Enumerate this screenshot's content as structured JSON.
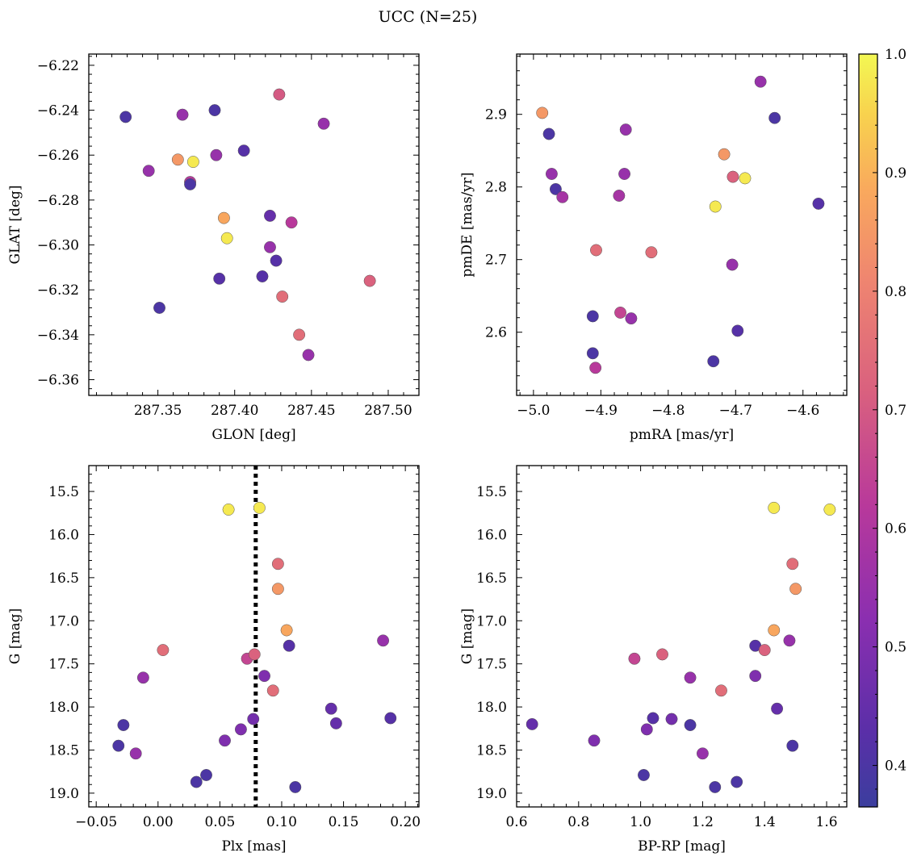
{
  "figure": {
    "title": "UCC (N=25)"
  },
  "colorbar": {
    "range": [
      0.365,
      1.0
    ],
    "ticks": [
      0.4,
      0.5,
      0.6,
      0.7,
      0.8,
      0.9,
      1.0
    ],
    "tick_labels": [
      "0.4",
      "0.5",
      "0.6",
      "0.7",
      "0.8",
      "0.9",
      "1.0"
    ],
    "colormap": "plasma"
  },
  "chart_data": [
    {
      "type": "scatter",
      "xlabel": "GLON [deg]",
      "ylabel": "GLAT [deg]",
      "xlim": [
        287.305,
        287.52
      ],
      "ylim": [
        -6.367,
        -6.215
      ],
      "y_inverted": false,
      "xticks": [
        287.35,
        287.4,
        287.45,
        287.5
      ],
      "xtick_labels": [
        "287.35",
        "287.40",
        "287.45",
        "287.50"
      ],
      "yticks": [
        -6.36,
        -6.34,
        -6.32,
        -6.3,
        -6.28,
        -6.26,
        -6.24,
        -6.22
      ],
      "ytick_labels": [
        "−6.36",
        "−6.34",
        "−6.32",
        "−6.30",
        "−6.28",
        "−6.26",
        "−6.24",
        "−6.22"
      ],
      "points": [
        {
          "x": 287.329,
          "y": -6.243,
          "c": 0.4
        },
        {
          "x": 287.366,
          "y": -6.242,
          "c": 0.55
        },
        {
          "x": 287.387,
          "y": -6.24,
          "c": 0.4
        },
        {
          "x": 287.429,
          "y": -6.233,
          "c": 0.7
        },
        {
          "x": 287.458,
          "y": -6.246,
          "c": 0.55
        },
        {
          "x": 287.406,
          "y": -6.258,
          "c": 0.42
        },
        {
          "x": 287.388,
          "y": -6.26,
          "c": 0.55
        },
        {
          "x": 287.363,
          "y": -6.262,
          "c": 0.85
        },
        {
          "x": 287.373,
          "y": -6.263,
          "c": 0.98
        },
        {
          "x": 287.344,
          "y": -6.267,
          "c": 0.55
        },
        {
          "x": 287.371,
          "y": -6.272,
          "c": 0.62
        },
        {
          "x": 287.371,
          "y": -6.273,
          "c": 0.4
        },
        {
          "x": 287.393,
          "y": -6.288,
          "c": 0.88
        },
        {
          "x": 287.423,
          "y": -6.287,
          "c": 0.45
        },
        {
          "x": 287.437,
          "y": -6.29,
          "c": 0.62
        },
        {
          "x": 287.395,
          "y": -6.297,
          "c": 0.98
        },
        {
          "x": 287.423,
          "y": -6.301,
          "c": 0.55
        },
        {
          "x": 287.427,
          "y": -6.307,
          "c": 0.42
        },
        {
          "x": 287.39,
          "y": -6.315,
          "c": 0.42
        },
        {
          "x": 287.418,
          "y": -6.314,
          "c": 0.42
        },
        {
          "x": 287.488,
          "y": -6.316,
          "c": 0.72
        },
        {
          "x": 287.431,
          "y": -6.323,
          "c": 0.75
        },
        {
          "x": 287.351,
          "y": -6.328,
          "c": 0.4
        },
        {
          "x": 287.442,
          "y": -6.34,
          "c": 0.75
        },
        {
          "x": 287.448,
          "y": -6.349,
          "c": 0.55
        }
      ]
    },
    {
      "type": "scatter",
      "xlabel": "pmRA [mas/yr]",
      "ylabel": "pmDE [mas/yr]",
      "xlim": [
        -5.025,
        -4.535
      ],
      "ylim": [
        2.513,
        2.983
      ],
      "y_inverted": false,
      "xticks": [
        -5.0,
        -4.9,
        -4.8,
        -4.7,
        -4.6
      ],
      "xtick_labels": [
        "−5.0",
        "−4.9",
        "−4.8",
        "−4.7",
        "−4.6"
      ],
      "yticks": [
        2.6,
        2.7,
        2.8,
        2.9
      ],
      "ytick_labels": [
        "2.6",
        "2.7",
        "2.8",
        "2.9"
      ],
      "points": [
        {
          "x": -4.987,
          "y": 2.902,
          "c": 0.85
        },
        {
          "x": -4.977,
          "y": 2.873,
          "c": 0.4
        },
        {
          "x": -4.973,
          "y": 2.818,
          "c": 0.55
        },
        {
          "x": -4.967,
          "y": 2.797,
          "c": 0.4
        },
        {
          "x": -4.957,
          "y": 2.786,
          "c": 0.58
        },
        {
          "x": -4.863,
          "y": 2.879,
          "c": 0.55
        },
        {
          "x": -4.865,
          "y": 2.818,
          "c": 0.55
        },
        {
          "x": -4.873,
          "y": 2.788,
          "c": 0.58
        },
        {
          "x": -4.663,
          "y": 2.945,
          "c": 0.55
        },
        {
          "x": -4.642,
          "y": 2.895,
          "c": 0.4
        },
        {
          "x": -4.717,
          "y": 2.845,
          "c": 0.85
        },
        {
          "x": -4.704,
          "y": 2.814,
          "c": 0.72
        },
        {
          "x": -4.686,
          "y": 2.812,
          "c": 0.98
        },
        {
          "x": -4.73,
          "y": 2.773,
          "c": 0.98
        },
        {
          "x": -4.577,
          "y": 2.777,
          "c": 0.42
        },
        {
          "x": -4.907,
          "y": 2.713,
          "c": 0.75
        },
        {
          "x": -4.825,
          "y": 2.71,
          "c": 0.75
        },
        {
          "x": -4.705,
          "y": 2.693,
          "c": 0.55
        },
        {
          "x": -4.871,
          "y": 2.627,
          "c": 0.65
        },
        {
          "x": -4.855,
          "y": 2.619,
          "c": 0.55
        },
        {
          "x": -4.912,
          "y": 2.622,
          "c": 0.4
        },
        {
          "x": -4.697,
          "y": 2.602,
          "c": 0.42
        },
        {
          "x": -4.912,
          "y": 2.571,
          "c": 0.4
        },
        {
          "x": -4.733,
          "y": 2.56,
          "c": 0.4
        },
        {
          "x": -4.908,
          "y": 2.551,
          "c": 0.62
        }
      ]
    },
    {
      "type": "scatter",
      "xlabel": "Plx [mas]",
      "ylabel": "G [mag]",
      "xlim": [
        -0.056,
        0.211
      ],
      "ylim": [
        19.16,
        15.2
      ],
      "y_inverted": true,
      "vline": {
        "x": 0.079,
        "style": "dotted"
      },
      "xticks": [
        -0.05,
        0.0,
        0.05,
        0.1,
        0.15,
        0.2
      ],
      "xtick_labels": [
        "−0.05",
        "0.00",
        "0.05",
        "0.10",
        "0.15",
        "0.20"
      ],
      "yticks": [
        15.5,
        16.0,
        16.5,
        17.0,
        17.5,
        18.0,
        18.5,
        19.0
      ],
      "ytick_labels": [
        "15.5",
        "16.0",
        "16.5",
        "17.0",
        "17.5",
        "18.0",
        "18.5",
        "19.0"
      ],
      "points": [
        {
          "x": 0.057,
          "y": 15.71,
          "c": 0.98
        },
        {
          "x": 0.082,
          "y": 15.69,
          "c": 0.98
        },
        {
          "x": 0.097,
          "y": 16.34,
          "c": 0.75
        },
        {
          "x": 0.097,
          "y": 16.63,
          "c": 0.85
        },
        {
          "x": 0.104,
          "y": 17.11,
          "c": 0.88
        },
        {
          "x": 0.004,
          "y": 17.34,
          "c": 0.75
        },
        {
          "x": 0.106,
          "y": 17.29,
          "c": 0.42
        },
        {
          "x": 0.182,
          "y": 17.23,
          "c": 0.55
        },
        {
          "x": 0.072,
          "y": 17.44,
          "c": 0.65
        },
        {
          "x": 0.078,
          "y": 17.39,
          "c": 0.72
        },
        {
          "x": -0.012,
          "y": 17.66,
          "c": 0.55
        },
        {
          "x": 0.086,
          "y": 17.64,
          "c": 0.5
        },
        {
          "x": 0.093,
          "y": 17.81,
          "c": 0.75
        },
        {
          "x": 0.14,
          "y": 18.02,
          "c": 0.45
        },
        {
          "x": -0.028,
          "y": 18.21,
          "c": 0.4
        },
        {
          "x": 0.144,
          "y": 18.19,
          "c": 0.45
        },
        {
          "x": 0.077,
          "y": 18.14,
          "c": 0.48
        },
        {
          "x": 0.188,
          "y": 18.13,
          "c": 0.42
        },
        {
          "x": 0.067,
          "y": 18.26,
          "c": 0.5
        },
        {
          "x": 0.054,
          "y": 18.39,
          "c": 0.5
        },
        {
          "x": -0.032,
          "y": 18.45,
          "c": 0.4
        },
        {
          "x": -0.018,
          "y": 18.54,
          "c": 0.55
        },
        {
          "x": 0.039,
          "y": 18.79,
          "c": 0.4
        },
        {
          "x": 0.031,
          "y": 18.87,
          "c": 0.4
        },
        {
          "x": 0.111,
          "y": 18.93,
          "c": 0.4
        }
      ]
    },
    {
      "type": "scatter",
      "xlabel": "BP-RP [mag]",
      "ylabel": "G [mag]",
      "xlim": [
        0.6,
        1.665
      ],
      "ylim": [
        19.16,
        15.2
      ],
      "y_inverted": true,
      "xticks": [
        0.6,
        0.8,
        1.0,
        1.2,
        1.4,
        1.6
      ],
      "xtick_labels": [
        "0.6",
        "0.8",
        "1.0",
        "1.2",
        "1.4",
        "1.6"
      ],
      "yticks": [
        15.5,
        16.0,
        16.5,
        17.0,
        17.5,
        18.0,
        18.5,
        19.0
      ],
      "ytick_labels": [
        "15.5",
        "16.0",
        "16.5",
        "17.0",
        "17.5",
        "18.0",
        "18.5",
        "19.0"
      ],
      "points": [
        {
          "x": 1.43,
          "y": 15.69,
          "c": 0.98
        },
        {
          "x": 1.61,
          "y": 15.71,
          "c": 0.98
        },
        {
          "x": 1.49,
          "y": 16.34,
          "c": 0.75
        },
        {
          "x": 1.5,
          "y": 16.63,
          "c": 0.85
        },
        {
          "x": 1.43,
          "y": 17.11,
          "c": 0.88
        },
        {
          "x": 1.37,
          "y": 17.29,
          "c": 0.42
        },
        {
          "x": 1.4,
          "y": 17.34,
          "c": 0.72
        },
        {
          "x": 1.48,
          "y": 17.23,
          "c": 0.55
        },
        {
          "x": 1.07,
          "y": 17.39,
          "c": 0.72
        },
        {
          "x": 0.98,
          "y": 17.44,
          "c": 0.65
        },
        {
          "x": 1.16,
          "y": 17.66,
          "c": 0.55
        },
        {
          "x": 1.37,
          "y": 17.64,
          "c": 0.5
        },
        {
          "x": 1.26,
          "y": 17.81,
          "c": 0.75
        },
        {
          "x": 1.44,
          "y": 18.02,
          "c": 0.45
        },
        {
          "x": 1.04,
          "y": 18.13,
          "c": 0.42
        },
        {
          "x": 1.1,
          "y": 18.14,
          "c": 0.48
        },
        {
          "x": 1.16,
          "y": 18.21,
          "c": 0.4
        },
        {
          "x": 0.65,
          "y": 18.2,
          "c": 0.45
        },
        {
          "x": 1.02,
          "y": 18.26,
          "c": 0.5
        },
        {
          "x": 0.85,
          "y": 18.39,
          "c": 0.5
        },
        {
          "x": 1.49,
          "y": 18.45,
          "c": 0.4
        },
        {
          "x": 1.2,
          "y": 18.54,
          "c": 0.55
        },
        {
          "x": 1.01,
          "y": 18.79,
          "c": 0.4
        },
        {
          "x": 1.31,
          "y": 18.87,
          "c": 0.4
        },
        {
          "x": 1.24,
          "y": 18.93,
          "c": 0.4
        }
      ]
    }
  ]
}
